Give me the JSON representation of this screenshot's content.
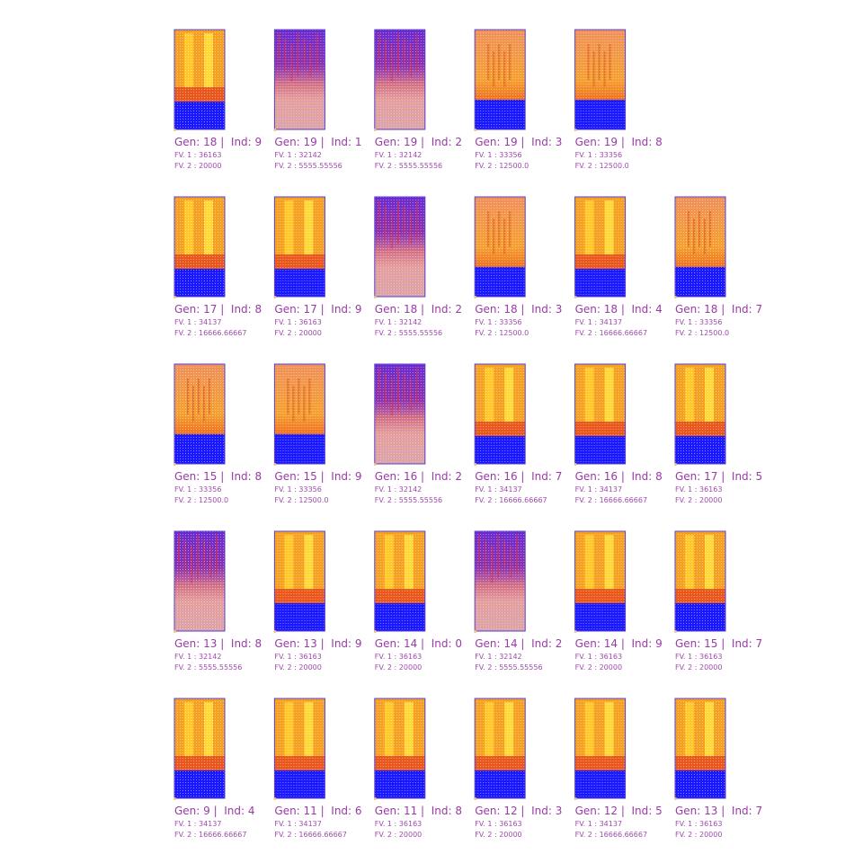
{
  "rows": [
    {
      "items": [
        {
          "title": "Gen: 18 |  Ind: 9",
          "fv1": "FV. 1 : 36163",
          "fv2": "FV. 2 : 20000"
        },
        {
          "title": "Gen: 19 |  Ind: 1",
          "fv1": "FV. 1 : 32142",
          "fv2": "FV. 2 : 5555.55556"
        },
        {
          "title": "Gen: 19 |  Ind: 2",
          "fv1": "FV. 1 : 32142",
          "fv2": "FV. 2 : 5555.55556"
        },
        {
          "title": "Gen: 19 |  Ind: 3",
          "fv1": "FV. 1 : 33356",
          "fv2": "FV. 2 : 12500.0"
        },
        {
          "title": "Gen: 19 |  Ind: 8",
          "fv1": "FV. 1 : 33356",
          "fv2": "FV. 2 : 12500.0"
        }
      ]
    },
    {
      "items": [
        {
          "title": "Gen: 17 |  Ind: 8",
          "fv1": "FV. 1 : 34137",
          "fv2": "FV. 2 : 16666.66667"
        },
        {
          "title": "Gen: 17 |  Ind: 9",
          "fv1": "FV. 1 : 36163",
          "fv2": "FV. 2 : 20000"
        },
        {
          "title": "Gen: 18 |  Ind: 2",
          "fv1": "FV. 1 : 32142",
          "fv2": "FV. 2 : 5555.55556"
        },
        {
          "title": "Gen: 18 |  Ind: 3",
          "fv1": "FV. 1 : 33356",
          "fv2": "FV. 2 : 12500.0"
        },
        {
          "title": "Gen: 18 |  Ind: 4",
          "fv1": "FV. 1 : 34137",
          "fv2": "FV. 2 : 16666.66667"
        },
        {
          "title": "Gen: 18 |  Ind: 7",
          "fv1": "FV. 1 : 33356",
          "fv2": "FV. 2 : 12500.0"
        }
      ]
    },
    {
      "items": [
        {
          "title": "Gen: 15 |  Ind: 8",
          "fv1": "FV. 1 : 33356",
          "fv2": "FV. 2 : 12500.0"
        },
        {
          "title": "Gen: 15 |  Ind: 9",
          "fv1": "FV. 1 : 33356",
          "fv2": "FV. 2 : 12500.0"
        },
        {
          "title": "Gen: 16 |  Ind: 2",
          "fv1": "FV. 1 : 32142",
          "fv2": "FV. 2 : 5555.55556"
        },
        {
          "title": "Gen: 16 |  Ind: 7",
          "fv1": "FV. 1 : 34137",
          "fv2": "FV. 2 : 16666.66667"
        },
        {
          "title": "Gen: 16 |  Ind: 8",
          "fv1": "FV. 1 : 34137",
          "fv2": "FV. 2 : 16666.66667"
        },
        {
          "title": "Gen: 17 |  Ind: 5",
          "fv1": "FV. 1 : 36163",
          "fv2": "FV. 2 : 20000"
        }
      ]
    },
    {
      "items": [
        {
          "title": "Gen: 13 |  Ind: 8",
          "fv1": "FV. 1 : 32142",
          "fv2": "FV. 2 : 5555.55556"
        },
        {
          "title": "Gen: 13 |  Ind: 9",
          "fv1": "FV. 1 : 36163",
          "fv2": "FV. 2 : 20000"
        },
        {
          "title": "Gen: 14 |  Ind: 0",
          "fv1": "FV. 1 : 36163",
          "fv2": "FV. 2 : 20000"
        },
        {
          "title": "Gen: 14 |  Ind: 2",
          "fv1": "FV. 1 : 32142",
          "fv2": "FV. 2 : 5555.55556"
        },
        {
          "title": "Gen: 14 |  Ind: 9",
          "fv1": "FV. 1 : 36163",
          "fv2": "FV. 2 : 20000"
        },
        {
          "title": "Gen: 15 |  Ind: 7",
          "fv1": "FV. 1 : 36163",
          "fv2": "FV. 2 : 20000"
        }
      ]
    },
    {
      "items": [
        {
          "title": "Gen: 9 |  Ind: 4",
          "fv1": "FV. 1 : 34137",
          "fv2": "FV. 2 : 16666.66667"
        },
        {
          "title": "Gen: 11 |  Ind: 6",
          "fv1": "FV. 1 : 34137",
          "fv2": "FV. 2 : 16666.66667"
        },
        {
          "title": "Gen: 11 |  Ind: 8",
          "fv1": "FV. 1 : 36163",
          "fv2": "FV. 2 : 20000"
        },
        {
          "title": "Gen: 12 |  Ind: 3",
          "fv1": "FV. 1 : 36163",
          "fv2": "FV. 2 : 20000"
        },
        {
          "title": "Gen: 12 |  Ind: 5",
          "fv1": "FV. 1 : 34137",
          "fv2": "FV. 2 : 16666.66667"
        },
        {
          "title": "Gen: 13 |  Ind: 7",
          "fv1": "FV. 1 : 36163",
          "fv2": "FV. 2 : 20000"
        }
      ]
    }
  ]
}
